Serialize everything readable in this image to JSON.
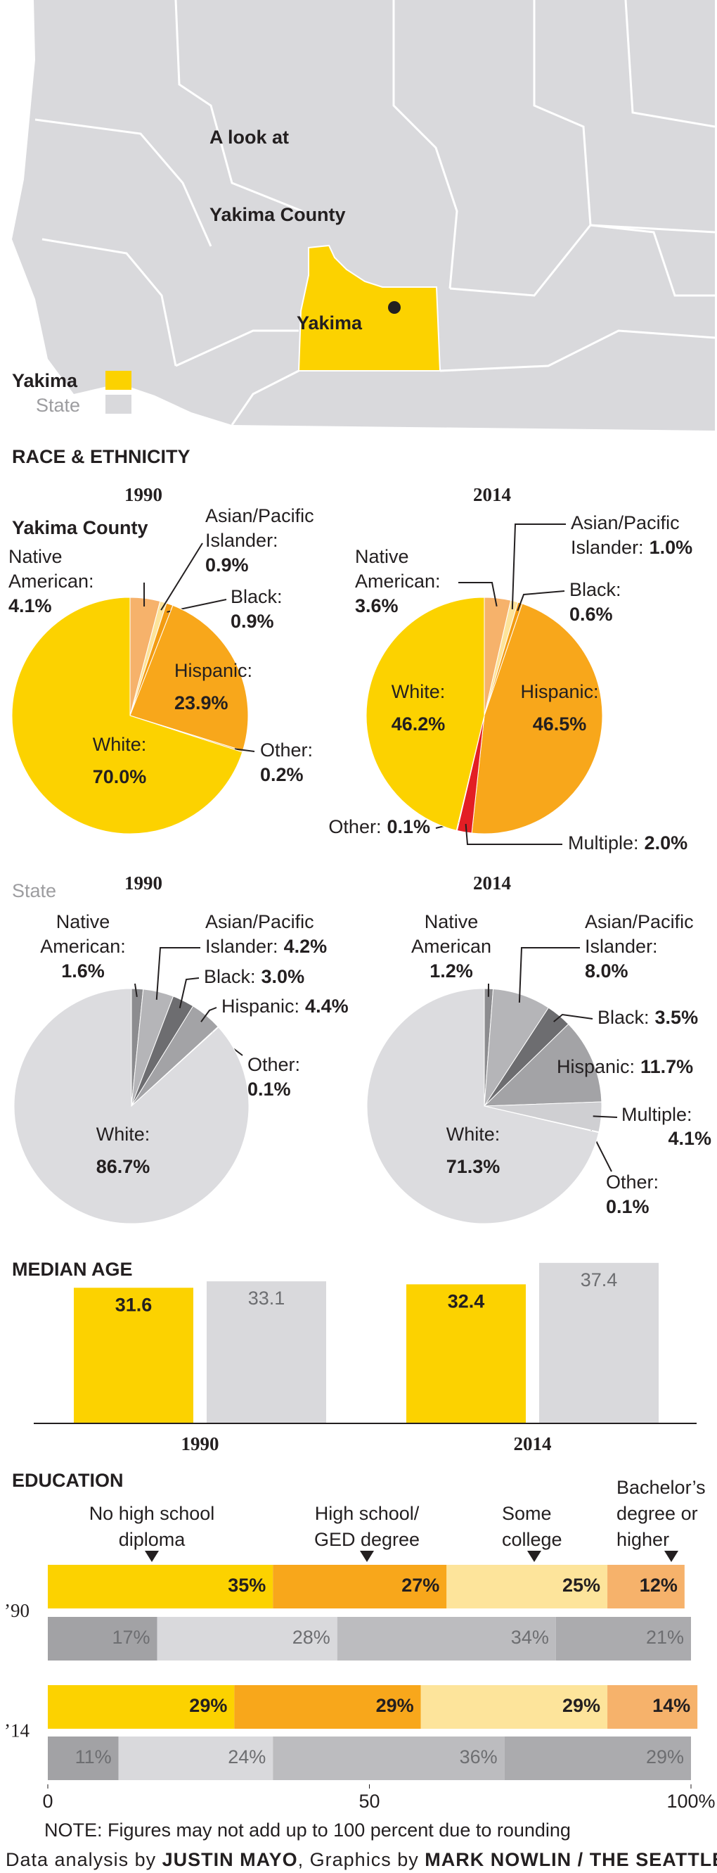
{
  "header": {
    "title": [
      "A look at",
      "Yakima County"
    ],
    "map_label": "Yakima",
    "legend": [
      "Yakima",
      "State"
    ]
  },
  "section_title": "RACE & ETHNICITY",
  "chart_data": [
    {
      "type": "pie",
      "subtitle": "Yakima County",
      "title": "1990",
      "categories": [
        [
          "Native",
          "American:"
        ],
        [
          "Asian/Pacific",
          "Islander:"
        ],
        [
          "Black:"
        ],
        [
          "Hispanic:"
        ],
        [
          "Other:"
        ],
        [
          "White:"
        ]
      ],
      "values": [
        4.1,
        0.9,
        0.9,
        23.9,
        0.2,
        70.0
      ],
      "value_labels": [
        "4.1%",
        "0.9%",
        "0.9%",
        "23.9%",
        "0.2%",
        "70.0%"
      ],
      "colors": [
        "#f6b26b",
        "#fde49b",
        "#f39c12",
        "#f8a71b",
        "#f7b84a",
        "#fcd200"
      ]
    },
    {
      "type": "pie",
      "title": "2014",
      "categories": [
        [
          "Native",
          "American:"
        ],
        [
          "Asian/Pacific",
          "Islander:"
        ],
        [
          "Black:"
        ],
        [
          "Hispanic:"
        ],
        [
          "Multiple:"
        ],
        [
          "Other:"
        ],
        [
          "White:"
        ]
      ],
      "values": [
        3.6,
        1.0,
        0.6,
        46.5,
        2.0,
        0.1,
        46.2
      ],
      "value_labels": [
        "3.6%",
        "1.0%",
        "0.6%",
        "46.5%",
        "2.0%",
        "0.1%",
        "46.2%"
      ],
      "colors": [
        "#f6b26b",
        "#fde49b",
        "#f39c12",
        "#f8a71b",
        "#e31e24",
        "#f7b84a",
        "#fcd200"
      ]
    },
    {
      "type": "pie",
      "subtitle": "State",
      "title": "1990",
      "categories": [
        [
          "Native",
          "American:"
        ],
        [
          "Asian/Pacific",
          "Islander:"
        ],
        [
          "Black:"
        ],
        [
          "Hispanic:"
        ],
        [
          "Other:"
        ],
        [
          "White:"
        ]
      ],
      "values": [
        1.6,
        4.2,
        3.0,
        4.4,
        0.1,
        86.7
      ],
      "value_labels": [
        "1.6%",
        "4.2%",
        "3.0%",
        "4.4%",
        "0.1%",
        "86.7%"
      ],
      "colors": [
        "#8c8c8f",
        "#b5b5b8",
        "#6d6d70",
        "#a3a3a6",
        "#c8c8cb",
        "#dcdcdf"
      ]
    },
    {
      "type": "pie",
      "title": "2014",
      "categories": [
        [
          "Native",
          "American"
        ],
        [
          "Asian/Pacific",
          "Islander:"
        ],
        [
          "Black:"
        ],
        [
          "Hispanic:"
        ],
        [
          "Multiple:"
        ],
        [
          "Other:"
        ],
        [
          "White:"
        ]
      ],
      "values": [
        1.2,
        8.0,
        3.5,
        11.7,
        4.1,
        0.1,
        71.3
      ],
      "value_labels": [
        "1.2%",
        "8.0%",
        "3.5%",
        "11.7%",
        "4.1%",
        "0.1%",
        "71.3%"
      ],
      "colors": [
        "#8c8c8f",
        "#b5b5b8",
        "#6d6d70",
        "#a3a3a6",
        "#cfcfd2",
        "#c0c0c3",
        "#dcdcdf"
      ]
    },
    {
      "type": "bar",
      "title": "MEDIAN AGE",
      "categories": [
        "1990",
        "2014"
      ],
      "series": [
        {
          "color": "#fcd200",
          "values": [
            31.6,
            32.4
          ]
        },
        {
          "color": "#d9d9dc",
          "values": [
            33.1,
            37.4
          ]
        }
      ]
    },
    {
      "type": "stacked_bar_h",
      "title": "EDUCATION",
      "categories": [
        [
          "No high school",
          "diploma"
        ],
        [
          "High school/",
          "GED degree"
        ],
        [
          "Some",
          "college"
        ],
        [
          "Bachelor’s",
          "degree or",
          "higher"
        ]
      ],
      "groups": [
        {
          "name": "’90",
          "rows": [
            {
              "colors": [
                "#fcd200",
                "#f8a71b",
                "#fde49b",
                "#f6b26b"
              ],
              "values": [
                35,
                27,
                25,
                12
              ],
              "value_labels": [
                "35%",
                "27%",
                "25%",
                "12%"
              ]
            },
            {
              "colors": [
                "#a2a2a5",
                "#d9d9dc",
                "#bcbcbf",
                "#ababae"
              ],
              "values": [
                17,
                28,
                34,
                21
              ],
              "value_labels": [
                "17%",
                "28%",
                "34%",
                "21%"
              ]
            }
          ]
        },
        {
          "name": "’14",
          "rows": [
            {
              "colors": [
                "#fcd200",
                "#f8a71b",
                "#fde49b",
                "#f6b26b"
              ],
              "values": [
                29,
                29,
                29,
                14
              ],
              "value_labels": [
                "29%",
                "29%",
                "29%",
                "14%"
              ]
            },
            {
              "colors": [
                "#a2a2a5",
                "#d9d9dc",
                "#bcbcbf",
                "#ababae"
              ],
              "values": [
                11,
                24,
                36,
                29
              ],
              "value_labels": [
                "11%",
                "24%",
                "36%",
                "29%"
              ]
            }
          ]
        }
      ],
      "xlim": [
        0,
        100
      ],
      "xticks": [
        0,
        50,
        {
          "value": 100,
          "label": "100%"
        }
      ]
    }
  ],
  "note": "NOTE: Figures may not add up to 100 percent due to rounding",
  "credits": [
    "Data analysis by ",
    "JUSTIN MAYO",
    ", Graphics by ",
    "MARK NOWLIN / THE SEATTLE TIMES"
  ]
}
